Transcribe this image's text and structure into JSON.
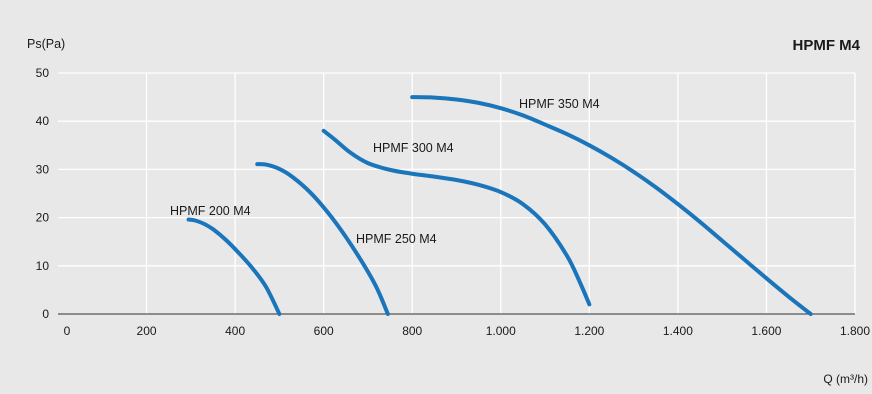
{
  "chart_data": {
    "type": "line",
    "title": "HPMF M4",
    "ylabel": "Ps(Pa)",
    "xlabel": "Q (m³/h)",
    "xlim": [
      0,
      1800
    ],
    "ylim": [
      0,
      50
    ],
    "x_ticks": [
      0,
      200,
      400,
      600,
      800,
      1000,
      1200,
      1400,
      1600,
      1800
    ],
    "x_tick_labels": [
      "0",
      "200",
      "400",
      "600",
      "800",
      "1.000",
      "1.200",
      "1.400",
      "1.600",
      "1.800"
    ],
    "y_ticks": [
      0,
      10,
      20,
      30,
      40,
      50
    ],
    "y_tick_labels": [
      "0",
      "10",
      "20",
      "30",
      "40",
      "50"
    ],
    "grid": true,
    "colors": {
      "background": "#e8e8e8",
      "plot_background": "#e8e8e8",
      "grid": "#ffffff",
      "line": "#1b75bb",
      "text": "#1a1a1a"
    },
    "series": [
      {
        "name": "HPMF 200 M4",
        "points": [
          [
            295,
            19.6
          ],
          [
            310,
            19.4
          ],
          [
            330,
            18.7
          ],
          [
            350,
            17.6
          ],
          [
            380,
            15.3
          ],
          [
            410,
            12.5
          ],
          [
            440,
            9.4
          ],
          [
            470,
            5.6
          ],
          [
            500,
            0
          ]
        ]
      },
      {
        "name": "HPMF 250 M4",
        "points": [
          [
            450,
            31.1
          ],
          [
            470,
            31.0
          ],
          [
            500,
            30.1
          ],
          [
            530,
            28.4
          ],
          [
            570,
            25.2
          ],
          [
            610,
            21.0
          ],
          [
            650,
            16.0
          ],
          [
            690,
            10.3
          ],
          [
            720,
            5.4
          ],
          [
            745,
            0
          ]
        ]
      },
      {
        "name": "HPMF 300 M4",
        "points": [
          [
            600,
            38.0
          ],
          [
            625,
            36.2
          ],
          [
            660,
            33.5
          ],
          [
            700,
            31.3
          ],
          [
            750,
            29.9
          ],
          [
            800,
            29.1
          ],
          [
            850,
            28.5
          ],
          [
            900,
            27.8
          ],
          [
            950,
            26.8
          ],
          [
            1000,
            25.3
          ],
          [
            1050,
            22.8
          ],
          [
            1100,
            18.6
          ],
          [
            1150,
            12.0
          ],
          [
            1180,
            6.3
          ],
          [
            1200,
            2.0
          ]
        ]
      },
      {
        "name": "HPMF 350 M4",
        "points": [
          [
            800,
            45.0
          ],
          [
            850,
            44.9
          ],
          [
            900,
            44.5
          ],
          [
            950,
            43.8
          ],
          [
            1000,
            42.7
          ],
          [
            1050,
            41.2
          ],
          [
            1100,
            39.3
          ],
          [
            1150,
            37.3
          ],
          [
            1200,
            35.0
          ],
          [
            1250,
            32.4
          ],
          [
            1300,
            29.5
          ],
          [
            1350,
            26.3
          ],
          [
            1400,
            22.8
          ],
          [
            1450,
            19.1
          ],
          [
            1500,
            15.2
          ],
          [
            1550,
            11.3
          ],
          [
            1600,
            7.4
          ],
          [
            1650,
            3.6
          ],
          [
            1700,
            0
          ]
        ]
      }
    ]
  }
}
